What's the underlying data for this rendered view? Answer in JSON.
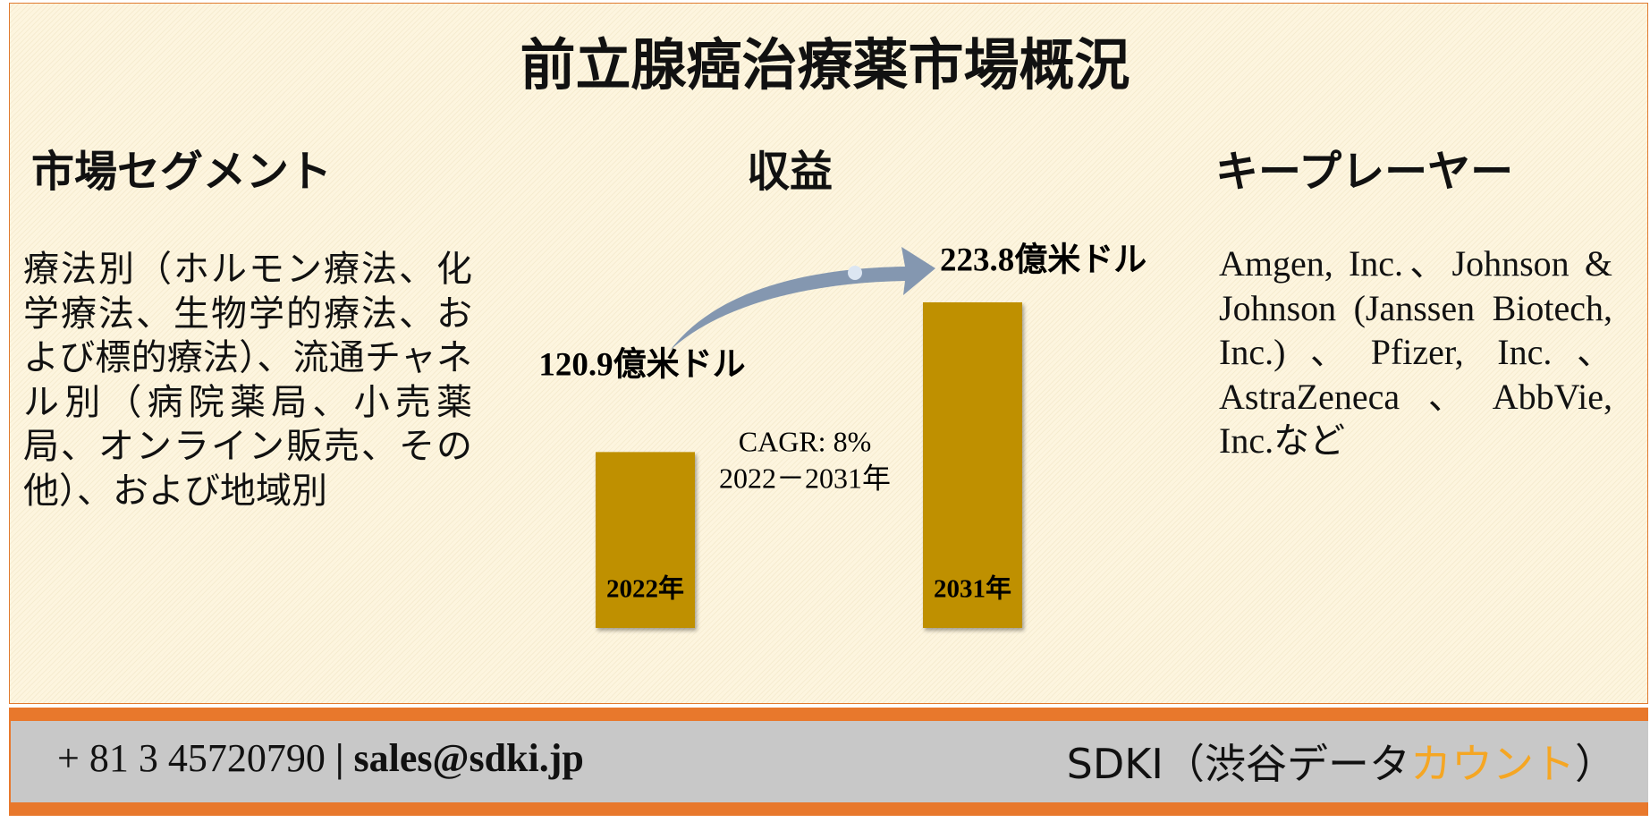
{
  "title": "前立腺癌治療薬市場概況",
  "segments": {
    "heading": "市場セグメント",
    "text": "療法別（ホルモン療法、化学療法、生物学的療法、および標的療法）、流通チャネル別（病院薬局、小売薬局、オンライン販売、その他）、および地域別"
  },
  "revenue": {
    "heading": "収益",
    "categories": [
      "2022年",
      "2031年"
    ],
    "values": [
      120.9,
      223.8
    ],
    "value_labels": [
      "120.9億米ドル",
      "223.8億米ドル"
    ],
    "color": "#bf9000",
    "cagr": "CAGR: 8%",
    "cagr_period": "2022－2031年"
  },
  "players": {
    "heading": "キープレーヤー",
    "text": "Amgen, Inc.、Johnson & Johnson (Janssen Biotech, Inc.)、Pfizer, Inc.、AstraZeneca、AbbVie, Inc.など"
  },
  "footer": {
    "phone": "+ 81 3 45720790",
    "separator": "|",
    "email": "sales@sdki.jp",
    "brand": "SDKI（渋谷データ",
    "brand_highlight": "カウント",
    "brand_end": "）"
  }
}
